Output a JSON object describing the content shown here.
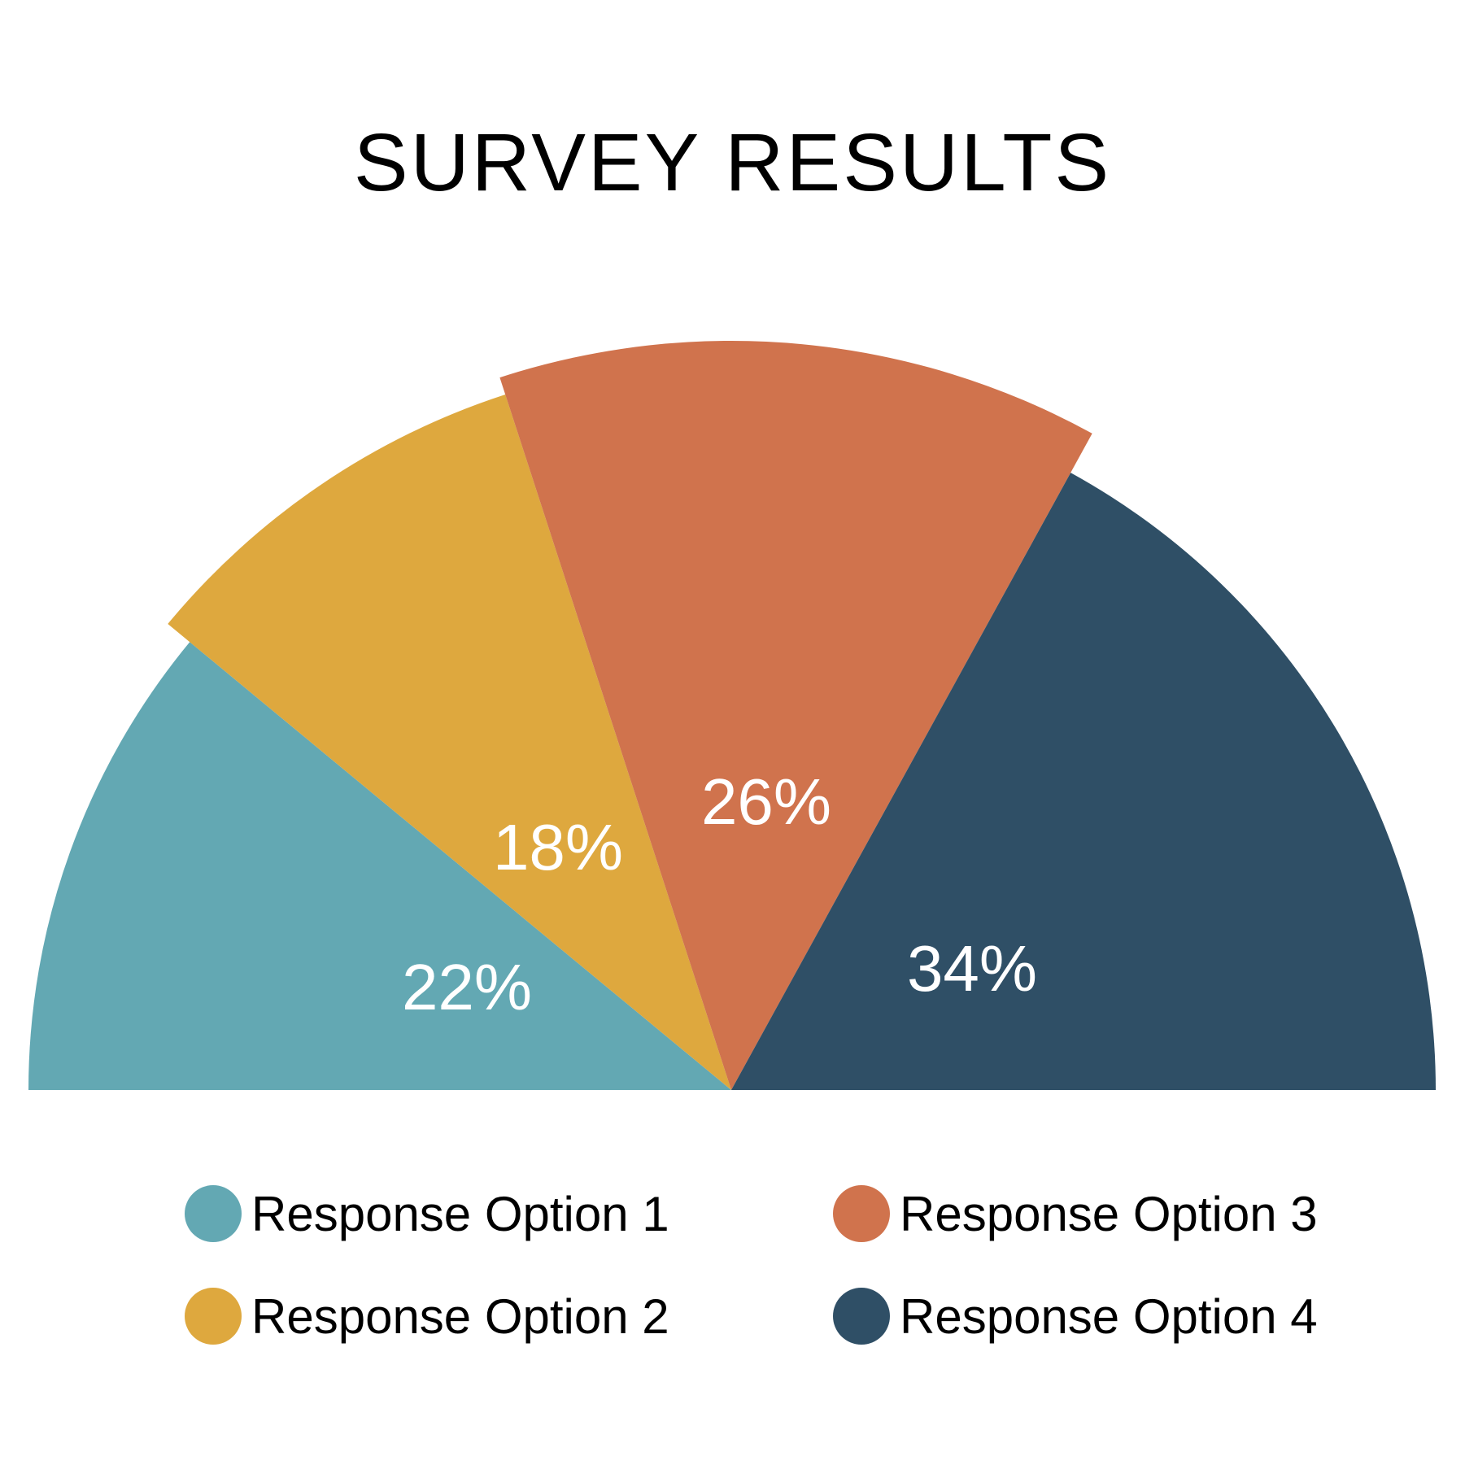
{
  "chart_data": {
    "type": "pie",
    "variant": "semicircle",
    "title": "SURVEY RESULTS",
    "categories": [
      "Response Option 1",
      "Response Option 2",
      "Response Option 3",
      "Response Option 4"
    ],
    "values": [
      22,
      18,
      26,
      34
    ],
    "data_labels": [
      "22%",
      "18%",
      "26%",
      "34%"
    ],
    "colors": [
      "#63a8b3",
      "#dea83e",
      "#d0734d",
      "#2f4f66"
    ],
    "legend_placement": "bottom"
  }
}
